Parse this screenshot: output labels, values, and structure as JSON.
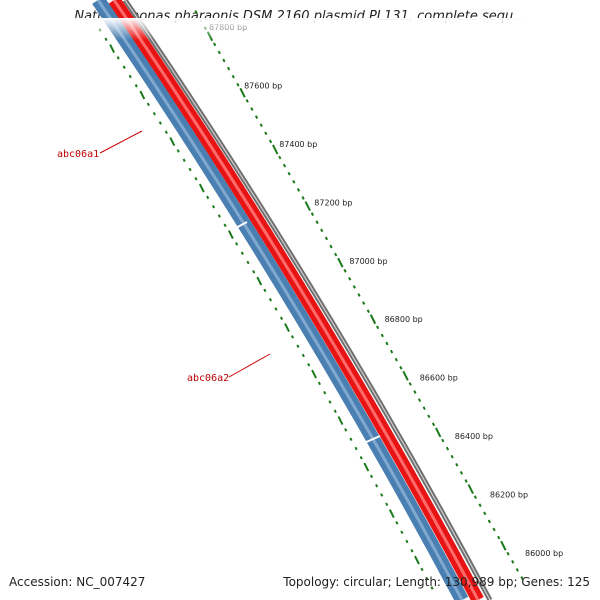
{
  "title": "Natronomonas pharaonis DSM 2160 plasmid PL131, complete sequ...",
  "footer": {
    "accession": "Accession: NC_007427",
    "summary": "Topology: circular; Length: 130,989 bp; Genes: 125"
  },
  "ruler": {
    "labels": [
      "87800 bp",
      "87600 bp",
      "87400 bp",
      "87200 bp",
      "87000 bp",
      "86800 bp",
      "86600 bp",
      "86400 bp",
      "86200 bp",
      "86000 bp"
    ]
  },
  "genes": [
    {
      "name": "abc06a1",
      "strand": "reverse"
    },
    {
      "name": "abc06a2",
      "strand": "reverse"
    }
  ],
  "colors": {
    "backbone": "#7a7a7a",
    "forward_feature": "#ee1111",
    "reverse_feature": "#4b7fb0",
    "ruler": "#1a7a1a",
    "gene_label": "#c00000"
  }
}
